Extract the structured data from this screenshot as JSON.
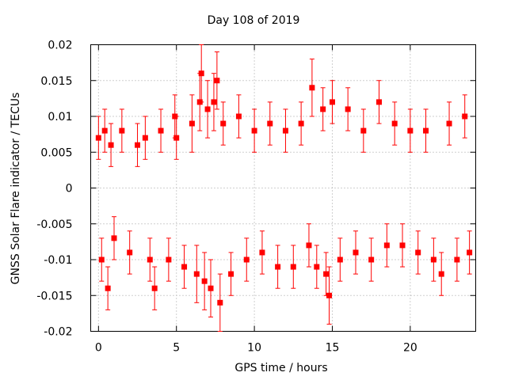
{
  "chart_data": {
    "type": "scatter",
    "title": "Day 108 of 2019",
    "xlabel": "GPS time / hours",
    "ylabel": "GNSS Solar Flare indicator / TECUs",
    "xlim": [
      -0.5,
      24.2
    ],
    "ylim": [
      -0.02,
      0.02
    ],
    "xticks": [
      0,
      5,
      10,
      15,
      20
    ],
    "xtick_labels": [
      "0",
      "5",
      "10",
      "15",
      "20"
    ],
    "yticks": [
      -0.02,
      -0.015,
      -0.01,
      -0.005,
      0,
      0.005,
      0.01,
      0.015,
      0.02
    ],
    "ytick_labels": [
      "-0.02",
      "-0.015",
      "-0.01",
      "-0.005",
      "0",
      "0.005",
      "0.01",
      "0.015",
      "0.02"
    ],
    "grid": true,
    "color": "#ff0000",
    "marker": "square",
    "error_bars": true,
    "series": [
      {
        "name": "solar flare indicator",
        "x": [
          0.0,
          0.2,
          0.4,
          0.6,
          0.8,
          1.0,
          1.5,
          2.0,
          2.5,
          3.0,
          3.3,
          3.6,
          4.0,
          4.5,
          4.9,
          5.0,
          5.5,
          6.0,
          6.3,
          6.5,
          6.6,
          6.8,
          7.0,
          7.2,
          7.4,
          7.6,
          7.8,
          8.0,
          8.5,
          9.0,
          9.5,
          10.0,
          10.5,
          11.0,
          11.5,
          12.0,
          12.5,
          13.0,
          13.5,
          13.7,
          14.0,
          14.4,
          14.6,
          14.8,
          15.0,
          15.5,
          16.0,
          16.5,
          17.0,
          17.5,
          18.0,
          18.5,
          19.0,
          19.5,
          20.0,
          20.5,
          21.0,
          21.5,
          22.0,
          22.5,
          23.0,
          23.5,
          23.8
        ],
        "y": [
          0.007,
          -0.01,
          0.008,
          -0.014,
          0.006,
          -0.007,
          0.008,
          -0.009,
          0.006,
          0.007,
          -0.01,
          -0.014,
          0.008,
          -0.01,
          0.01,
          0.007,
          -0.011,
          0.009,
          -0.012,
          0.012,
          0.016,
          -0.013,
          0.011,
          -0.014,
          0.012,
          0.015,
          -0.016,
          0.009,
          -0.012,
          0.01,
          -0.01,
          0.008,
          -0.009,
          0.009,
          -0.011,
          0.008,
          -0.011,
          0.009,
          -0.008,
          0.014,
          -0.011,
          0.011,
          -0.012,
          -0.015,
          0.012,
          -0.01,
          0.011,
          -0.009,
          0.008,
          -0.01,
          0.012,
          -0.008,
          0.009,
          -0.008,
          0.008,
          -0.009,
          0.008,
          -0.01,
          -0.012,
          0.009,
          -0.01,
          0.01,
          -0.009
        ],
        "err": [
          0.003,
          0.003,
          0.003,
          0.003,
          0.003,
          0.003,
          0.003,
          0.003,
          0.003,
          0.003,
          0.003,
          0.003,
          0.003,
          0.003,
          0.003,
          0.003,
          0.003,
          0.004,
          0.004,
          0.004,
          0.004,
          0.004,
          0.004,
          0.004,
          0.004,
          0.004,
          0.004,
          0.003,
          0.003,
          0.003,
          0.003,
          0.003,
          0.003,
          0.003,
          0.003,
          0.003,
          0.003,
          0.003,
          0.003,
          0.004,
          0.003,
          0.003,
          0.003,
          0.004,
          0.003,
          0.003,
          0.003,
          0.003,
          0.003,
          0.003,
          0.003,
          0.003,
          0.003,
          0.003,
          0.003,
          0.003,
          0.003,
          0.003,
          0.003,
          0.003,
          0.003,
          0.003,
          0.003
        ]
      }
    ]
  }
}
